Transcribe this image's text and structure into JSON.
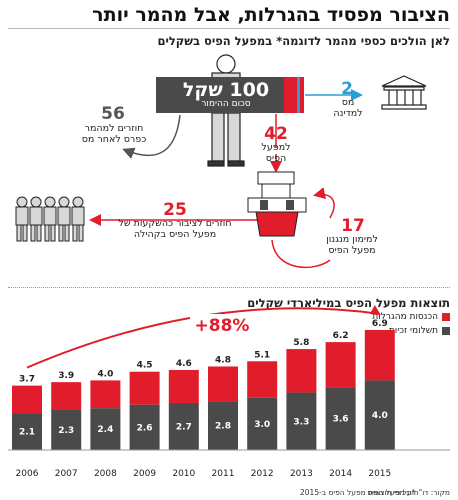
{
  "header": {
    "title": "הציבור מפסיד בהגרלות, אבל מהמר יותר",
    "subtitle": "לאן הולכים כספי מהמר לדוגמה* במפעל הפיס בשקלים"
  },
  "flow": {
    "sign_amount": "100 שקל",
    "sign_caption": "סכום ההימור",
    "state_value": "2",
    "state_label": "מס למדינה",
    "returned_value": "56",
    "returned_label": "חוזרים למהמר כפרס לאחר מס",
    "lottery_value": "42",
    "lottery_label": "למפעל הפיס",
    "operations_value": "17",
    "operations_label": "למימון מנגנון מפעל הפיס",
    "public_value": "25",
    "public_label": "חוזרים לציבור כהשקעות של מפעל הפיס בקהילה"
  },
  "colors": {
    "red": "#e11d2b",
    "dark": "#4a4a4a",
    "blue": "#2a9fd6"
  },
  "chart_data": {
    "type": "bar",
    "title": "תוצאות מפעל הפיס במיליארדי שקלים",
    "categories": [
      "2006",
      "2007",
      "2008",
      "2009",
      "2010",
      "2011",
      "2012",
      "2013",
      "2014",
      "2015"
    ],
    "series": [
      {
        "name": "תשלומי זכיות",
        "values": [
          2.1,
          2.3,
          2.4,
          2.6,
          2.7,
          2.8,
          3.0,
          3.3,
          3.6,
          4.0
        ]
      },
      {
        "name": "הכנסות מהגרלות",
        "values": [
          3.7,
          3.9,
          4.0,
          4.5,
          4.6,
          4.8,
          5.1,
          5.8,
          6.2,
          6.9
        ]
      }
    ],
    "totals": [
      "3.7",
      "3.9",
      "4.0",
      "4.5",
      "4.6",
      "4.8",
      "5.1",
      "5.8",
      "6.2",
      "6.9"
    ],
    "inner_labels": [
      "2.1",
      "2.3",
      "2.4",
      "2.6",
      "2.7",
      "2.8",
      "3.0",
      "3.3",
      "3.6",
      "4.0"
    ],
    "growth_label": "+88%",
    "legend": [
      "הכנסות מהגרלות",
      "תשלומי זכיות"
    ]
  },
  "footer": {
    "source": "מקור: דו\"חות מפעל הפיס",
    "note": "*על פי תוצאות מפעל הפיס ב-2015"
  }
}
